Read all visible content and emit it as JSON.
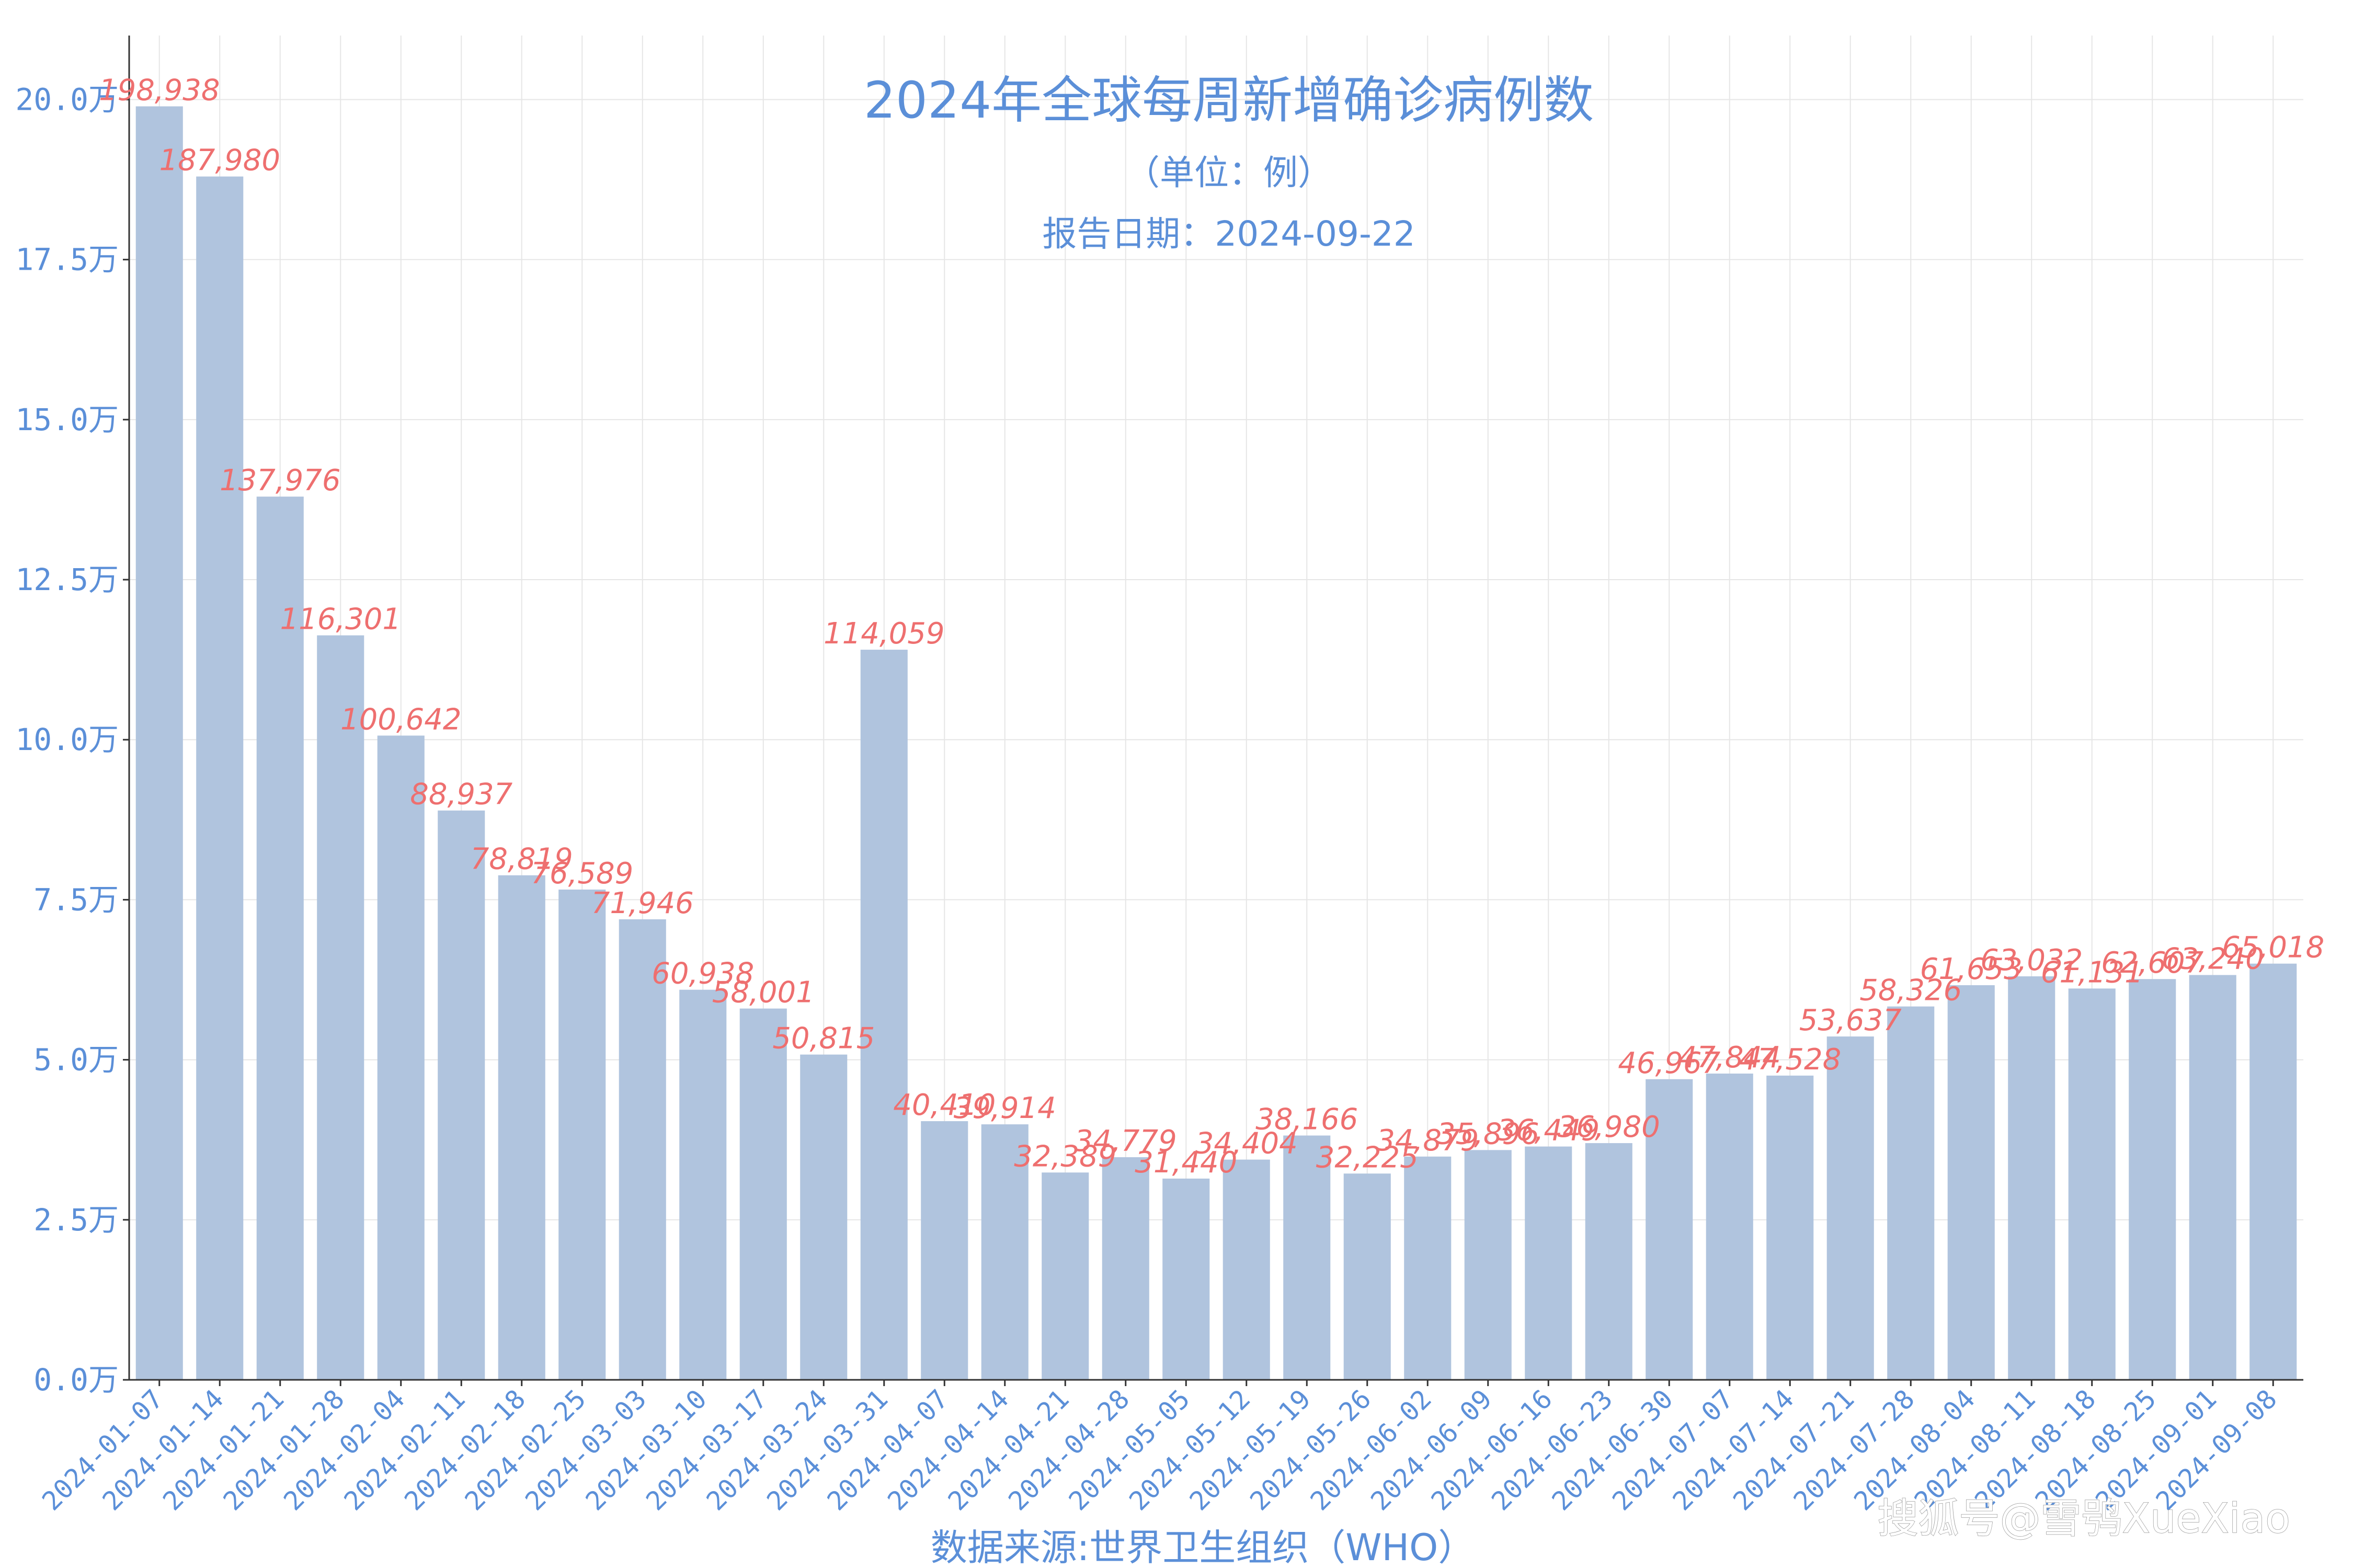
{
  "colors": {
    "bar": "#b0c4de",
    "accent_text": "#5b8fd8",
    "data_label": "#ee6f6f",
    "grid": "#e6e6e6",
    "axis": "#333333"
  },
  "watermark": "搜狐号@雪鸮XueXiao",
  "chart_data": {
    "type": "bar",
    "title": "2024年全球每周新增确诊病例数",
    "subtitle": "（单位：例）",
    "report_date": "报告日期：2024-09-22",
    "xlabel": "数据来源:世界卫生组织（WHO）",
    "ylabel": "",
    "ylim": [
      0,
      210000
    ],
    "grid": true,
    "yticks": [
      0,
      25000,
      50000,
      75000,
      100000,
      125000,
      150000,
      175000,
      200000
    ],
    "ytick_labels": [
      "0.0万",
      "2.5万",
      "5.0万",
      "7.5万",
      "10.0万",
      "12.5万",
      "15.0万",
      "17.5万",
      "20.0万"
    ],
    "categories": [
      "2024-01-07",
      "2024-01-14",
      "2024-01-21",
      "2024-01-28",
      "2024-02-04",
      "2024-02-11",
      "2024-02-18",
      "2024-02-25",
      "2024-03-03",
      "2024-03-10",
      "2024-03-17",
      "2024-03-24",
      "2024-03-31",
      "2024-04-07",
      "2024-04-14",
      "2024-04-21",
      "2024-04-28",
      "2024-05-05",
      "2024-05-12",
      "2024-05-19",
      "2024-05-26",
      "2024-06-02",
      "2024-06-09",
      "2024-06-16",
      "2024-06-23",
      "2024-06-30",
      "2024-07-07",
      "2024-07-14",
      "2024-07-21",
      "2024-07-28",
      "2024-08-04",
      "2024-08-11",
      "2024-08-18",
      "2024-08-25",
      "2024-09-01",
      "2024-09-08"
    ],
    "values": [
      198938,
      187980,
      137976,
      116301,
      100642,
      88937,
      78819,
      76589,
      71946,
      60938,
      58001,
      50815,
      114059,
      40410,
      39914,
      32389,
      34779,
      31440,
      34404,
      38166,
      32225,
      34879,
      35896,
      36449,
      36980,
      46967,
      47844,
      47528,
      53637,
      58326,
      61653,
      63032,
      61131,
      62607,
      63240,
      65018
    ],
    "value_labels": [
      "198,938",
      "187,980",
      "137,976",
      "116,301",
      "100,642",
      "88,937",
      "78,819",
      "76,589",
      "71,946",
      "60,938",
      "58,001",
      "50,815",
      "114,059",
      "40,410",
      "39,914",
      "32,389",
      "34,779",
      "31,440",
      "34,404",
      "38,166",
      "32,225",
      "34,879",
      "35,896",
      "36,449",
      "36,980",
      "46,967",
      "47,844",
      "47,528",
      "53,637",
      "58,326",
      "61,653",
      "63,032",
      "61,131",
      "62,607",
      "63,240",
      "65,018"
    ]
  }
}
